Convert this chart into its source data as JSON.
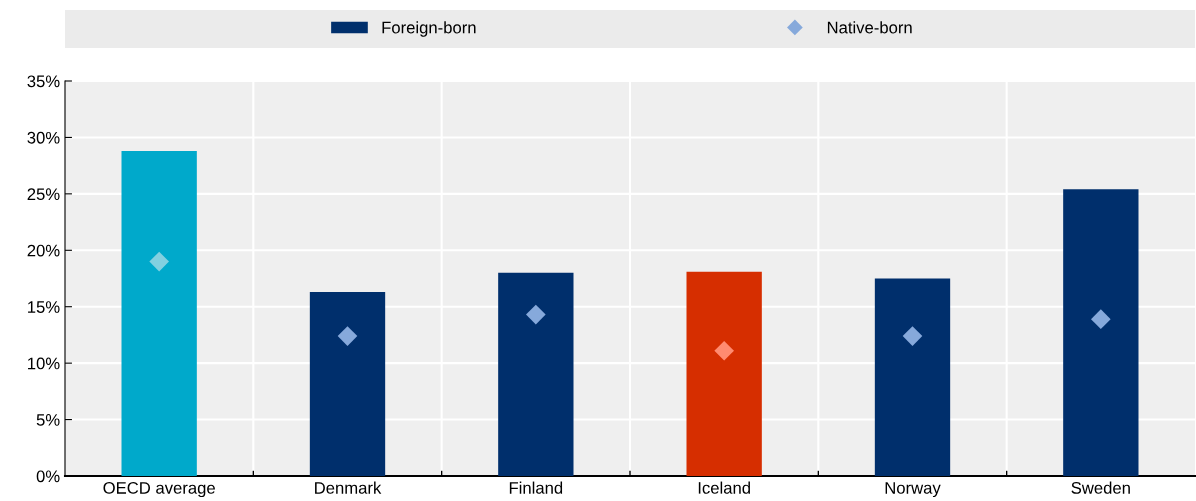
{
  "chart_data": {
    "type": "bar",
    "categories": [
      "OECD average",
      "Denmark",
      "Finland",
      "Iceland",
      "Norway",
      "Sweden"
    ],
    "series": [
      {
        "name": "Foreign-born",
        "colors": [
          "#00a9cb",
          "#002f6c",
          "#002f6c",
          "#d62e00",
          "#002f6c",
          "#002f6c"
        ],
        "values": [
          28.8,
          16.3,
          18.0,
          18.1,
          17.5,
          25.4
        ]
      },
      {
        "name": "Native-born",
        "type": "scatter",
        "marker": "diamond",
        "colors": [
          "#82d0e0",
          "#86a9db",
          "#86a9db",
          "#ff8b70",
          "#86a9db",
          "#86a9db"
        ],
        "values": [
          19.0,
          12.4,
          14.3,
          11.1,
          12.4,
          13.9
        ]
      }
    ],
    "ylim": [
      0,
      35
    ],
    "yticks": [
      {
        "value": 0,
        "label": "0%"
      },
      {
        "value": 5,
        "label": "5%"
      },
      {
        "value": 10,
        "label": "10%"
      },
      {
        "value": 15,
        "label": "15%"
      },
      {
        "value": 20,
        "label": "20%"
      },
      {
        "value": 25,
        "label": "25%"
      },
      {
        "value": 30,
        "label": "30%"
      },
      {
        "value": 35,
        "label": "35%"
      }
    ],
    "grid": true,
    "legend": "top"
  }
}
